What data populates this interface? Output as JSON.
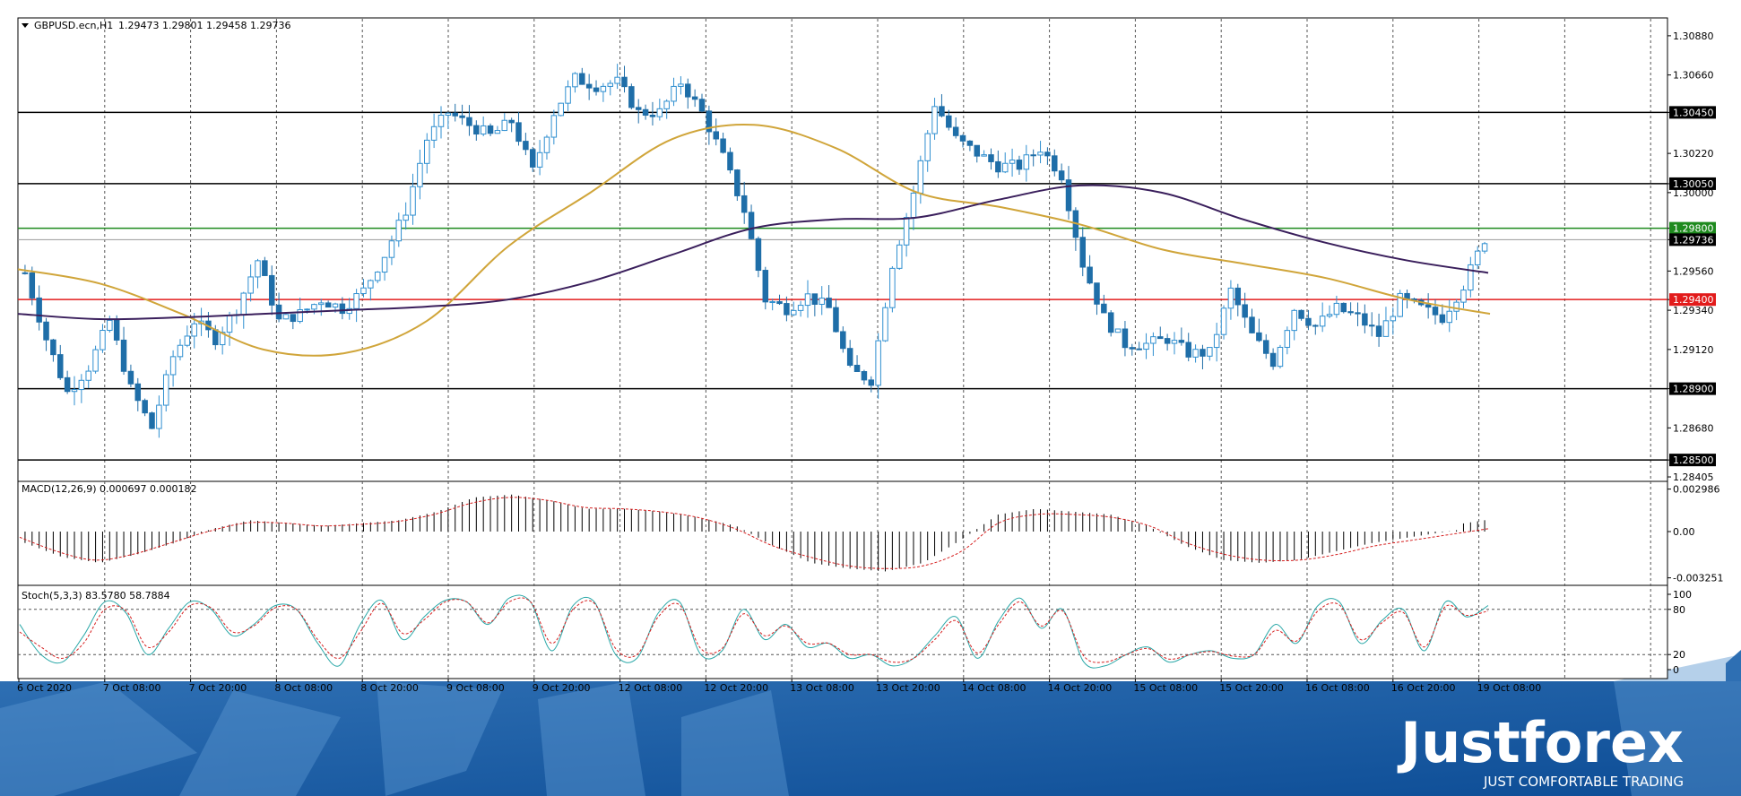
{
  "header": {
    "symbol": "GBPUSD.ecn,H1",
    "ohlc": "1.29473 1.29801 1.29458 1.29736"
  },
  "chart_data": [
    {
      "type": "candlestick",
      "title": "GBPUSD.ecn,H1",
      "ylim": [
        1.2838,
        1.3098
      ],
      "y_ticks": [
        "1.30880",
        "1.30660",
        "1.30450",
        "1.30220",
        "1.30050",
        "1.30000",
        "1.29800",
        "1.29736",
        "1.29560",
        "1.29400",
        "1.29340",
        "1.29120",
        "1.28900",
        "1.28680",
        "1.28500",
        "1.28405"
      ],
      "x_ticks": [
        "6 Oct 2020",
        "7 Oct 08:00",
        "7 Oct 20:00",
        "8 Oct 08:00",
        "8 Oct 20:00",
        "9 Oct 08:00",
        "9 Oct 20:00",
        "12 Oct 08:00",
        "12 Oct 20:00",
        "13 Oct 08:00",
        "13 Oct 20:00",
        "14 Oct 08:00",
        "14 Oct 20:00",
        "15 Oct 08:00",
        "15 Oct 20:00",
        "16 Oct 08:00",
        "16 Oct 20:00",
        "19 Oct 08:00"
      ],
      "close_path": [
        1.2955,
        1.2918,
        1.2888,
        1.2902,
        1.2928,
        1.289,
        1.2868,
        1.2908,
        1.2928,
        1.2918,
        1.2935,
        1.2962,
        1.2928,
        1.2932,
        1.294,
        1.2935,
        1.2945,
        1.2965,
        1.299,
        1.303,
        1.3045,
        1.3038,
        1.3032,
        1.304,
        1.3012,
        1.3045,
        1.3064,
        1.306,
        1.3062,
        1.3045,
        1.3045,
        1.3062,
        1.3045,
        1.302,
        1.299,
        1.294,
        1.2935,
        1.2942,
        1.2935,
        1.29,
        1.2895,
        1.296,
        1.3,
        1.305,
        1.303,
        1.3022,
        1.3015,
        1.3015,
        1.3025,
        1.301,
        1.296,
        1.293,
        1.2915,
        1.2915,
        1.2918,
        1.291,
        1.291,
        1.2945,
        1.292,
        1.2905,
        1.2935,
        1.2925,
        1.2935,
        1.293,
        1.292,
        1.294,
        1.2935,
        1.293,
        1.2948,
        1.2974
      ],
      "support_resistance": [
        1.3045,
        1.3005,
        1.298,
        1.294,
        1.289,
        1.285
      ],
      "current_price": 1.29736,
      "colors": {
        "up": "#2f8fd0",
        "down": "#1f6ea8",
        "resistance": "#000000",
        "green_line": "#1e8a1e",
        "red_line": "#e21b1b",
        "ma_fast": "#d0a53a",
        "ma_slow": "#3a1f5c"
      },
      "moving_averages": [
        {
          "values": [
            1.2957,
            1.2949,
            1.2932,
            1.2912,
            1.291,
            1.2928,
            1.297,
            1.3,
            1.303,
            1.3038,
            1.3025,
            1.3,
            1.2992,
            1.2982,
            1.2968,
            1.296,
            1.2952,
            1.294,
            1.2932
          ]
        },
        {
          "values": [
            1.2932,
            1.2929,
            1.293,
            1.2932,
            1.2934,
            1.2936,
            1.294,
            1.295,
            1.2965,
            1.298,
            1.2985,
            1.2986,
            1.2996,
            1.3004,
            1.3,
            1.2985,
            1.2972,
            1.2962,
            1.2955
          ]
        }
      ],
      "price_tags": [
        {
          "label": "1.30450",
          "value": 1.3045,
          "color": "#000000"
        },
        {
          "label": "1.30050",
          "value": 1.3005,
          "color": "#000000"
        },
        {
          "label": "1.29800",
          "value": 1.298,
          "color": "#1e8a1e"
        },
        {
          "label": "1.29736",
          "value": 1.29736,
          "color": "#000000"
        },
        {
          "label": "1.29400",
          "value": 1.294,
          "color": "#e21b1b"
        },
        {
          "label": "1.28900",
          "value": 1.289,
          "color": "#000000"
        },
        {
          "label": "1.28500",
          "value": 1.285,
          "color": "#000000"
        }
      ]
    },
    {
      "type": "bar",
      "title": "MACD(12,26,9) 0.000697 0.000182",
      "ylim": [
        -0.0034,
        0.00315
      ],
      "y_ticks": [
        "0.002986",
        "0.00",
        "-0.003251"
      ],
      "histogram_path": [
        -0.0008,
        -0.0018,
        -0.0022,
        -0.0016,
        -0.0008,
        0.0002,
        0.0008,
        0.0006,
        0.0004,
        0.0006,
        0.0008,
        0.0014,
        0.0024,
        0.0026,
        0.0022,
        0.0016,
        0.0016,
        0.0014,
        0.001,
        0.0004,
        -0.001,
        -0.0022,
        -0.0026,
        -0.0028,
        -0.0022,
        -0.0006,
        0.0012,
        0.0016,
        0.0014,
        0.0012,
        0.0004,
        -0.001,
        -0.002,
        -0.0022,
        -0.002,
        -0.0014,
        -0.0008,
        -0.0004,
        0.0,
        0.0004
      ],
      "signal_path": [
        -0.0004,
        -0.0014,
        -0.002,
        -0.0016,
        -0.0008,
        0.0,
        0.0006,
        0.0006,
        0.0004,
        0.0005,
        0.0007,
        0.0012,
        0.002,
        0.0024,
        0.0022,
        0.0017,
        0.0016,
        0.0014,
        0.001,
        0.0002,
        -0.001,
        -0.0018,
        -0.0024,
        -0.0026,
        -0.0024,
        -0.0014,
        0.0006,
        0.0012,
        0.0012,
        0.001,
        0.0004,
        -0.0008,
        -0.0016,
        -0.002,
        -0.002,
        -0.0016,
        -0.001,
        -0.0006,
        -0.0002,
        0.0002
      ]
    },
    {
      "type": "line",
      "title": "Stoch(5,3,3) 83.5780 58.7884",
      "ylim": [
        0,
        100
      ],
      "y_ticks": [
        "100",
        "80",
        "20",
        "0"
      ],
      "series": [
        {
          "values": [
            60,
            20,
            10,
            45,
            90,
            75,
            20,
            55,
            90,
            80,
            45,
            60,
            85,
            80,
            35,
            5,
            60,
            92,
            40,
            70,
            92,
            90,
            60,
            95,
            90,
            25,
            85,
            90,
            20,
            15,
            75,
            90,
            20,
            25,
            80,
            40,
            60,
            30,
            35,
            15,
            20,
            5,
            15,
            45,
            70,
            15,
            65,
            95,
            55,
            80,
            10,
            5,
            20,
            30,
            10,
            20,
            25,
            15,
            20,
            60,
            35,
            85,
            90,
            35,
            65,
            80,
            25,
            90,
            70,
            85
          ]
        },
        {
          "values": [
            50,
            30,
            15,
            35,
            80,
            78,
            30,
            50,
            85,
            82,
            50,
            58,
            82,
            80,
            40,
            15,
            50,
            88,
            48,
            66,
            90,
            90,
            62,
            90,
            90,
            35,
            80,
            88,
            28,
            20,
            70,
            86,
            28,
            28,
            74,
            45,
            58,
            35,
            35,
            20,
            20,
            10,
            15,
            40,
            65,
            22,
            60,
            90,
            58,
            78,
            18,
            10,
            20,
            28,
            14,
            20,
            24,
            18,
            20,
            52,
            38,
            78,
            86,
            40,
            62,
            76,
            30,
            84,
            72,
            78
          ]
        }
      ]
    }
  ],
  "branding": {
    "name": "Justforex",
    "tagline": "JUST COMFORTABLE TRADING"
  }
}
